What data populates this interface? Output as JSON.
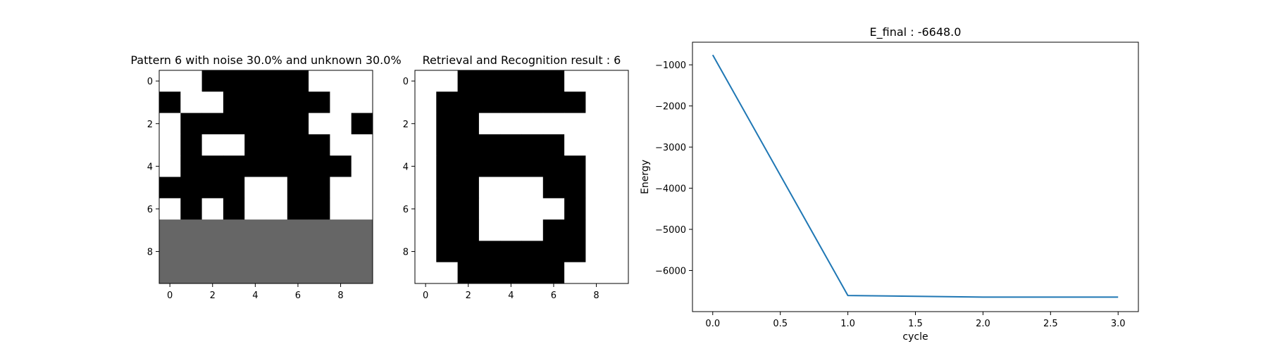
{
  "chart_data": [
    {
      "type": "heatmap",
      "title": "Pattern 6 with noise 30.0% and unknown 30.0%",
      "rows": 10,
      "cols": 10,
      "xticks": [
        0,
        2,
        4,
        6,
        8
      ],
      "yticks": [
        0,
        2,
        4,
        6,
        8
      ],
      "encoding": "1 = black, -1 = white, 0 = gray (unknown)",
      "grid": [
        [
          -1,
          -1,
          1,
          1,
          1,
          1,
          1,
          -1,
          -1,
          -1
        ],
        [
          1,
          -1,
          -1,
          1,
          1,
          1,
          1,
          1,
          -1,
          -1
        ],
        [
          -1,
          1,
          1,
          1,
          1,
          1,
          1,
          -1,
          -1,
          1
        ],
        [
          -1,
          1,
          -1,
          -1,
          1,
          1,
          1,
          1,
          -1,
          -1
        ],
        [
          -1,
          1,
          1,
          1,
          1,
          1,
          1,
          1,
          1,
          -1
        ],
        [
          1,
          1,
          1,
          1,
          -1,
          -1,
          1,
          1,
          -1,
          -1
        ],
        [
          -1,
          1,
          -1,
          1,
          -1,
          -1,
          1,
          1,
          -1,
          -1
        ],
        [
          0,
          0,
          0,
          0,
          0,
          0,
          0,
          0,
          0,
          0
        ],
        [
          0,
          0,
          0,
          0,
          0,
          0,
          0,
          0,
          0,
          0
        ],
        [
          0,
          0,
          0,
          0,
          0,
          0,
          0,
          0,
          0,
          0
        ]
      ],
      "colors": {
        "1": "#000000",
        "-1": "#ffffff",
        "0": "#666666"
      }
    },
    {
      "type": "heatmap",
      "title": "Retrieval and Recognition result : 6",
      "rows": 10,
      "cols": 10,
      "xticks": [
        0,
        2,
        4,
        6,
        8
      ],
      "yticks": [
        0,
        2,
        4,
        6,
        8
      ],
      "encoding": "1 = black, -1 = white",
      "grid": [
        [
          -1,
          -1,
          1,
          1,
          1,
          1,
          1,
          -1,
          -1,
          -1
        ],
        [
          -1,
          1,
          1,
          1,
          1,
          1,
          1,
          1,
          -1,
          -1
        ],
        [
          -1,
          1,
          1,
          -1,
          -1,
          -1,
          -1,
          -1,
          -1,
          -1
        ],
        [
          -1,
          1,
          1,
          1,
          1,
          1,
          1,
          -1,
          -1,
          -1
        ],
        [
          -1,
          1,
          1,
          1,
          1,
          1,
          1,
          1,
          -1,
          -1
        ],
        [
          -1,
          1,
          1,
          -1,
          -1,
          -1,
          1,
          1,
          -1,
          -1
        ],
        [
          -1,
          1,
          1,
          -1,
          -1,
          -1,
          -1,
          1,
          -1,
          -1
        ],
        [
          -1,
          1,
          1,
          -1,
          -1,
          -1,
          1,
          1,
          -1,
          -1
        ],
        [
          -1,
          1,
          1,
          1,
          1,
          1,
          1,
          1,
          -1,
          -1
        ],
        [
          -1,
          -1,
          1,
          1,
          1,
          1,
          1,
          -1,
          -1,
          -1
        ]
      ],
      "colors": {
        "1": "#000000",
        "-1": "#ffffff"
      }
    },
    {
      "type": "line",
      "title": "E_final : -6648.0",
      "xlabel": "cycle",
      "ylabel": "Energy",
      "xlim": [
        -0.15,
        3.15
      ],
      "ylim": [
        -7000,
        -450
      ],
      "xticks": [
        0.0,
        0.5,
        1.0,
        1.5,
        2.0,
        2.5,
        3.0
      ],
      "xtick_labels": [
        "0.0",
        "0.5",
        "1.0",
        "1.5",
        "2.0",
        "2.5",
        "3.0"
      ],
      "yticks": [
        -1000,
        -2000,
        -3000,
        -4000,
        -5000,
        -6000
      ],
      "ytick_labels": [
        "−1000",
        "−2000",
        "−3000",
        "−4000",
        "−5000",
        "−6000"
      ],
      "series": [
        {
          "x": [
            0,
            1,
            2,
            3
          ],
          "y": [
            -760,
            -6608,
            -6648,
            -6648
          ],
          "color": "#1f77b4"
        }
      ],
      "grid": false
    }
  ]
}
